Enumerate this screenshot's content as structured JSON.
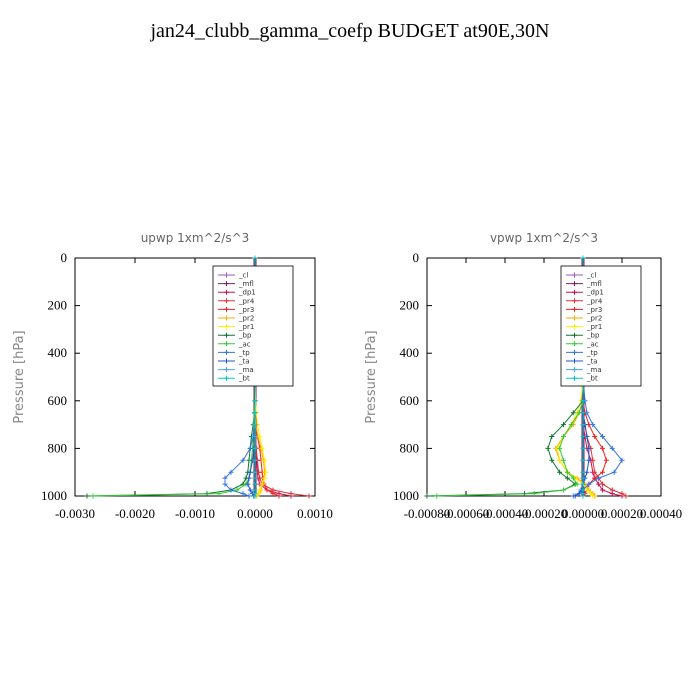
{
  "title": "jan24_clubb_gamma_coefp  BUDGET at90E,30N",
  "legend_entries": [
    "_cl",
    "_mfl",
    "_dp1",
    "_pr4",
    "_pr3",
    "_pr2",
    "_pr1",
    "_bp",
    "_ac",
    "_tp",
    "_ta",
    "_ma",
    "_bt"
  ],
  "colors": {
    "_cl": "#9955cc",
    "_mfl": "#7a1f5e",
    "_dp1": "#cc1155",
    "_pr4": "#dd3333",
    "_pr3": "#ee2222",
    "_pr2": "#ffaa00",
    "_pr1": "#ffee00",
    "_bp": "#117733",
    "_ac": "#33cc33",
    "_tp": "#3377dd",
    "_ta": "#2255cc",
    "_ma": "#44aaee",
    "_bt": "#00cccc"
  },
  "chart_data": [
    {
      "type": "line",
      "title": "upwp   1xm^2/s^3",
      "ylabel": "Pressure [hPa]",
      "xlim": [
        -0.003,
        0.001
      ],
      "ylim": [
        1000,
        0
      ],
      "xticks": [
        "-0.0030",
        "-0.0020",
        "-0.0010",
        "0.0000",
        "0.0010"
      ],
      "xtick_values": [
        -0.003,
        -0.002,
        -0.001,
        0.0,
        0.001
      ],
      "yticks": [
        0,
        200,
        400,
        600,
        800,
        1000
      ],
      "legend_position": "top-right",
      "y": [
        0,
        100,
        200,
        300,
        400,
        500,
        600,
        650,
        700,
        750,
        800,
        850,
        900,
        925,
        950,
        975,
        990,
        1000
      ],
      "series": [
        {
          "name": "_cl",
          "values": [
            0,
            0,
            0,
            0,
            0,
            0,
            0,
            0,
            0,
            0,
            0,
            0,
            0,
            0,
            0,
            0,
            0,
            0
          ]
        },
        {
          "name": "_mfl",
          "values": [
            0,
            0,
            0,
            0,
            0,
            0,
            0,
            0,
            0,
            0,
            0,
            0,
            0,
            0,
            0,
            0,
            0,
            0
          ]
        },
        {
          "name": "_dp1",
          "values": [
            0,
            0,
            0,
            0,
            0,
            0,
            0,
            0,
            0,
            1e-05,
            2e-05,
            3e-05,
            4e-05,
            5e-05,
            8e-05,
            0.0002,
            0.0004,
            0.0006
          ]
        },
        {
          "name": "_pr4",
          "values": [
            0,
            0,
            0,
            0,
            0,
            0,
            0,
            0,
            0,
            1e-05,
            2e-05,
            4e-05,
            6e-05,
            8e-05,
            0.00012,
            0.0003,
            0.0006,
            0.0009
          ]
        },
        {
          "name": "_pr3",
          "values": [
            0,
            0,
            0,
            0,
            0,
            0,
            0,
            0,
            2e-05,
            4e-05,
            8e-05,
            0.0001,
            0.00012,
            0.00013,
            0.00015,
            0.0002,
            0.0003,
            0.0004
          ]
        },
        {
          "name": "_pr2",
          "values": [
            0,
            0,
            0,
            0,
            0,
            0,
            0,
            0,
            1e-05,
            5e-05,
            0.0001,
            0.00014,
            0.00016,
            0.00015,
            0.00012,
            0.0001,
            6e-05,
            3e-05
          ]
        },
        {
          "name": "_pr1",
          "values": [
            0,
            0,
            0,
            0,
            0,
            0,
            1e-05,
            2e-05,
            4e-05,
            8e-05,
            0.00012,
            0.00016,
            0.00018,
            0.00016,
            0.00012,
            8e-05,
            5e-05,
            2e-05
          ]
        },
        {
          "name": "_bp",
          "values": [
            0,
            0,
            0,
            0,
            0,
            0,
            0,
            -1e-05,
            -3e-05,
            -6e-05,
            -8e-05,
            -0.0001,
            -0.00012,
            -0.00015,
            -0.0002,
            -0.0004,
            -0.0008,
            -0.0028
          ]
        },
        {
          "name": "_ac",
          "values": [
            0,
            0,
            0,
            0,
            0,
            0,
            0,
            -1e-05,
            -2e-05,
            -3e-05,
            -4e-05,
            -6e-05,
            -8e-05,
            -0.0001,
            -0.00015,
            -0.0003,
            -0.0006,
            -0.0027
          ]
        },
        {
          "name": "_tp",
          "values": [
            0,
            0,
            0,
            0,
            0,
            0,
            0,
            0,
            -1e-05,
            -3e-05,
            -8e-05,
            -0.0002,
            -0.0004,
            -0.0005,
            -0.0005,
            -0.0004,
            -0.0002,
            -0.0001
          ]
        },
        {
          "name": "_ta",
          "values": [
            0,
            0,
            0,
            0,
            0,
            0,
            0,
            0,
            0,
            -1e-05,
            -2e-05,
            -4e-05,
            -8e-05,
            -0.0001,
            -0.00012,
            -8e-05,
            -4e-05,
            -2e-05
          ]
        },
        {
          "name": "_ma",
          "values": [
            0,
            0,
            0,
            0,
            0,
            0,
            0,
            0,
            0,
            0,
            0,
            0,
            0,
            0,
            0,
            0,
            0,
            0
          ]
        },
        {
          "name": "_bt",
          "values": [
            0,
            0,
            0,
            0,
            0,
            0,
            0,
            0,
            0,
            0,
            0,
            0,
            0,
            0,
            0,
            0,
            0,
            0
          ]
        }
      ]
    },
    {
      "type": "line",
      "title": "vpwp   1xm^2/s^3",
      "ylabel": "Pressure [hPa]",
      "xlim": [
        -0.0008,
        0.0004
      ],
      "ylim": [
        1000,
        0
      ],
      "xticks": [
        "-0.00080",
        "-0.00060",
        "-0.00040",
        "-0.00020",
        "0.00000",
        "0.00020",
        "0.00040"
      ],
      "xtick_values": [
        -0.0008,
        -0.0006,
        -0.0004,
        -0.0002,
        0.0,
        0.0002,
        0.0004
      ],
      "yticks": [
        0,
        200,
        400,
        600,
        800,
        1000
      ],
      "legend_position": "top-right",
      "y": [
        0,
        100,
        200,
        300,
        400,
        500,
        600,
        650,
        700,
        750,
        800,
        850,
        900,
        925,
        950,
        975,
        990,
        1000
      ],
      "series": [
        {
          "name": "_cl",
          "values": [
            0,
            0,
            0,
            0,
            0,
            0,
            0,
            0,
            0,
            0,
            0,
            0,
            0,
            0,
            0,
            0,
            0,
            0
          ]
        },
        {
          "name": "_mfl",
          "values": [
            0,
            0,
            0,
            0,
            0,
            0,
            0,
            0,
            0,
            0,
            0,
            0,
            0,
            0,
            0,
            0,
            0,
            0
          ]
        },
        {
          "name": "_dp1",
          "values": [
            0,
            0,
            0,
            0,
            0,
            0,
            0,
            0,
            0,
            1e-05,
            2e-05,
            4e-05,
            5e-05,
            6e-05,
            8e-05,
            0.0001,
            0.00015,
            0.0002
          ]
        },
        {
          "name": "_pr4",
          "values": [
            0,
            0,
            0,
            0,
            0,
            0,
            0,
            0,
            1e-05,
            2e-05,
            4e-05,
            5e-05,
            6e-05,
            8e-05,
            0.0001,
            0.00015,
            0.0002,
            0.00022
          ]
        },
        {
          "name": "_pr3",
          "values": [
            0,
            0,
            0,
            0,
            0,
            0,
            0,
            1e-05,
            3e-05,
            6e-05,
            0.0001,
            0.00012,
            0.0001,
            6e-05,
            3e-05,
            2e-05,
            1e-05,
            0
          ]
        },
        {
          "name": "_pr2",
          "values": [
            0,
            0,
            0,
            0,
            0,
            0,
            0,
            -2e-05,
            -5e-05,
            -0.0001,
            -0.00014,
            -0.00012,
            -8e-05,
            -3e-05,
            1e-05,
            3e-05,
            5e-05,
            6e-05
          ]
        },
        {
          "name": "_pr1",
          "values": [
            0,
            0,
            0,
            0,
            0,
            0,
            -1e-05,
            -3e-05,
            -6e-05,
            -0.0001,
            -0.00013,
            -0.00012,
            -8e-05,
            -4e-05,
            0,
            2e-05,
            4e-05,
            5e-05
          ]
        },
        {
          "name": "_bp",
          "values": [
            0,
            0,
            0,
            0,
            0,
            0,
            0,
            -5e-05,
            -0.0001,
            -0.00016,
            -0.00018,
            -0.00016,
            -0.00012,
            -8e-05,
            -4e-05,
            -0.0001,
            -0.0003,
            -0.0008
          ]
        },
        {
          "name": "_ac",
          "values": [
            0,
            0,
            0,
            0,
            0,
            0,
            0,
            -2e-05,
            -6e-05,
            -0.0001,
            -0.00012,
            -0.0001,
            -8e-05,
            -5e-05,
            -3e-05,
            -0.0001,
            -0.00025,
            -0.00075
          ]
        },
        {
          "name": "_tp",
          "values": [
            0,
            0,
            0,
            0,
            0,
            0,
            1e-05,
            2e-05,
            5e-05,
            0.0001,
            0.00015,
            0.0002,
            0.00016,
            8e-05,
            3e-05,
            0,
            -2e-05,
            -5e-05
          ]
        },
        {
          "name": "_ta",
          "values": [
            0,
            0,
            0,
            0,
            0,
            0,
            0,
            0,
            1e-05,
            2e-05,
            3e-05,
            3e-05,
            2e-05,
            1e-05,
            0,
            -1e-05,
            -2e-05,
            -4e-05
          ]
        },
        {
          "name": "_ma",
          "values": [
            0,
            0,
            0,
            0,
            0,
            0,
            0,
            0,
            0,
            0,
            0,
            0,
            0,
            0,
            0,
            0,
            0,
            0
          ]
        },
        {
          "name": "_bt",
          "values": [
            0,
            0,
            0,
            0,
            0,
            0,
            0,
            0,
            0,
            0,
            0,
            0,
            0,
            0,
            0,
            0,
            0,
            0
          ]
        }
      ]
    }
  ]
}
